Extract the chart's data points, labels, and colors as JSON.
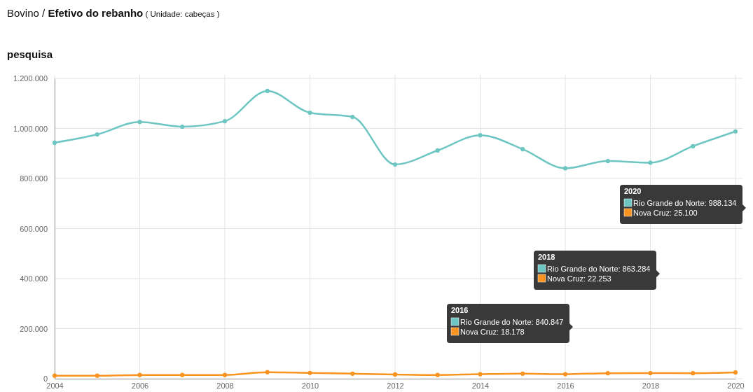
{
  "chart_data": {
    "type": "line",
    "title": "Bovino / Efetivo do rebanho",
    "subtitle": "pesquisa",
    "annotations": [
      "( Unidade: cabeças )",
      "2020\nRio Grande do Norte: 988.134\nNova Cruz: 25.100",
      "2018\nRio Grande do Norte: 863.284\nNova Cruz: 22.253",
      "2016\nRio Grande do Norte: 840.847\nNova Cruz: 18.178"
    ],
    "x": [
      2004,
      2005,
      2006,
      2007,
      2008,
      2009,
      2010,
      2011,
      2012,
      2013,
      2014,
      2015,
      2016,
      2017,
      2018,
      2019,
      2020
    ],
    "series": [
      {
        "color": "#6ec6c3",
        "values": [
          943000,
          976000,
          1026000,
          1007000,
          1029000,
          1150000,
          1063000,
          1046000,
          856000,
          912000,
          973000,
          917000,
          840847,
          870000,
          863284,
          929000,
          988134
        ]
      },
      {
        "color": "#f7931e",
        "values": [
          12000,
          12000,
          15000,
          15000,
          15000,
          26000,
          23000,
          20000,
          17000,
          15000,
          18000,
          20000,
          18178,
          22000,
          22253,
          22000,
          25100
        ]
      }
    ],
    "xlim": [
      2004,
      2020
    ],
    "xticks": [
      2004,
      2006,
      2008,
      2010,
      2012,
      2014,
      2016,
      2018,
      2020
    ],
    "ylim": [
      0,
      1200000
    ],
    "yticks": [
      {
        "value": 0,
        "label": "0"
      },
      {
        "value": 200000,
        "label": "200.000"
      },
      {
        "value": 400000,
        "label": "400.000"
      },
      {
        "value": 600000,
        "label": "600.000"
      },
      {
        "value": 800000,
        "label": "800.000"
      },
      {
        "value": 1000000,
        "label": "1.000.000"
      },
      {
        "value": 1200000,
        "label": "1.200.000"
      }
    ],
    "grid": true,
    "marker": "circle",
    "line_style": "solid"
  }
}
